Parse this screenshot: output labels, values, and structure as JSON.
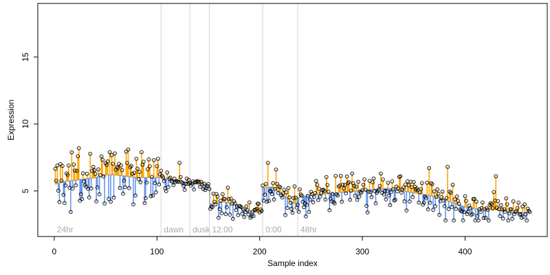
{
  "chart_data": {
    "type": "scatter",
    "xlabel": "Sample index",
    "ylabel": "Expression",
    "xlim": [
      -16,
      480
    ],
    "ylim": [
      1.6,
      19.0
    ],
    "x_ticks": [
      0,
      100,
      200,
      300,
      400
    ],
    "y_ticks": [
      5,
      10,
      15
    ],
    "grid": false,
    "colors": {
      "above_fit": "#ffa500",
      "below_fit": "#6495ed",
      "fit_line": "#a9a9a9",
      "segment_lines": "#d3d3d3",
      "segment_labels": "#a9a9a9",
      "points": "#000000"
    },
    "segments": [
      {
        "label": "24hr",
        "start": 0,
        "end": 104
      },
      {
        "label": "dawn",
        "start": 104,
        "end": 132
      },
      {
        "label": "dusk",
        "start": 132,
        "end": 151
      },
      {
        "label": "12:00",
        "start": 151,
        "end": 203
      },
      {
        "label": "0:00",
        "start": 203,
        "end": 237
      },
      {
        "label": "48hr",
        "start": 237,
        "end": 463
      }
    ],
    "fit_anchors": [
      [
        0,
        5.5
      ],
      [
        10,
        5.7
      ],
      [
        20,
        5.8
      ],
      [
        30,
        5.9
      ],
      [
        40,
        6.0
      ],
      [
        50,
        6.2
      ],
      [
        60,
        6.2
      ],
      [
        70,
        6.1
      ],
      [
        80,
        6.0
      ],
      [
        90,
        6.0
      ],
      [
        100,
        6.0
      ],
      [
        104,
        6.0
      ],
      [
        132,
        5.6
      ],
      [
        140,
        5.5
      ],
      [
        151,
        5.4
      ],
      [
        152,
        4.0
      ],
      [
        165,
        4.2
      ],
      [
        175,
        4.0
      ],
      [
        185,
        3.6
      ],
      [
        195,
        3.4
      ],
      [
        202,
        3.4
      ],
      [
        203,
        5.2
      ],
      [
        212,
        5.3
      ],
      [
        222,
        4.8
      ],
      [
        230,
        4.2
      ],
      [
        236,
        4.0
      ],
      [
        237,
        4.5
      ],
      [
        250,
        4.7
      ],
      [
        265,
        4.8
      ],
      [
        280,
        4.9
      ],
      [
        295,
        5.0
      ],
      [
        310,
        5.1
      ],
      [
        325,
        5.2
      ],
      [
        340,
        5.0
      ],
      [
        355,
        4.8
      ],
      [
        370,
        4.6
      ],
      [
        385,
        4.2
      ],
      [
        400,
        3.8
      ],
      [
        415,
        3.6
      ],
      [
        430,
        3.6
      ],
      [
        445,
        3.4
      ],
      [
        463,
        3.4
      ]
    ],
    "noise": [
      [
        0,
        104,
        2.3
      ],
      [
        104,
        132,
        0.8
      ],
      [
        132,
        151,
        0.6
      ],
      [
        151,
        203,
        1.1
      ],
      [
        203,
        237,
        1.6
      ],
      [
        237,
        360,
        1.4
      ],
      [
        360,
        390,
        1.7
      ],
      [
        390,
        463,
        1.1
      ]
    ],
    "highlights": [
      [
        3,
        6.9
      ],
      [
        6,
        7.0
      ],
      [
        14,
        6.9
      ],
      [
        22,
        6.5
      ],
      [
        38,
        6.8
      ],
      [
        52,
        7.2
      ],
      [
        65,
        6.9
      ],
      [
        80,
        7.4
      ],
      [
        85,
        7.9
      ],
      [
        97,
        7.3
      ],
      [
        101,
        7.4
      ],
      [
        122,
        7.1
      ],
      [
        208,
        7.1
      ],
      [
        216,
        6.6
      ],
      [
        290,
        6.3
      ],
      [
        318,
        6.3
      ],
      [
        365,
        6.7
      ],
      [
        383,
        6.8
      ],
      [
        430,
        6.1
      ],
      [
        10,
        4.1
      ],
      [
        27,
        4.4
      ],
      [
        55,
        4.2
      ],
      [
        77,
        4.0
      ],
      [
        88,
        4.1
      ],
      [
        160,
        3.0
      ],
      [
        179,
        3.2
      ],
      [
        191,
        3.0
      ],
      [
        225,
        3.2
      ],
      [
        245,
        3.1
      ],
      [
        305,
        3.4
      ],
      [
        398,
        2.8
      ],
      [
        420,
        3.0
      ],
      [
        455,
        3.0
      ]
    ],
    "n_points": 463
  }
}
